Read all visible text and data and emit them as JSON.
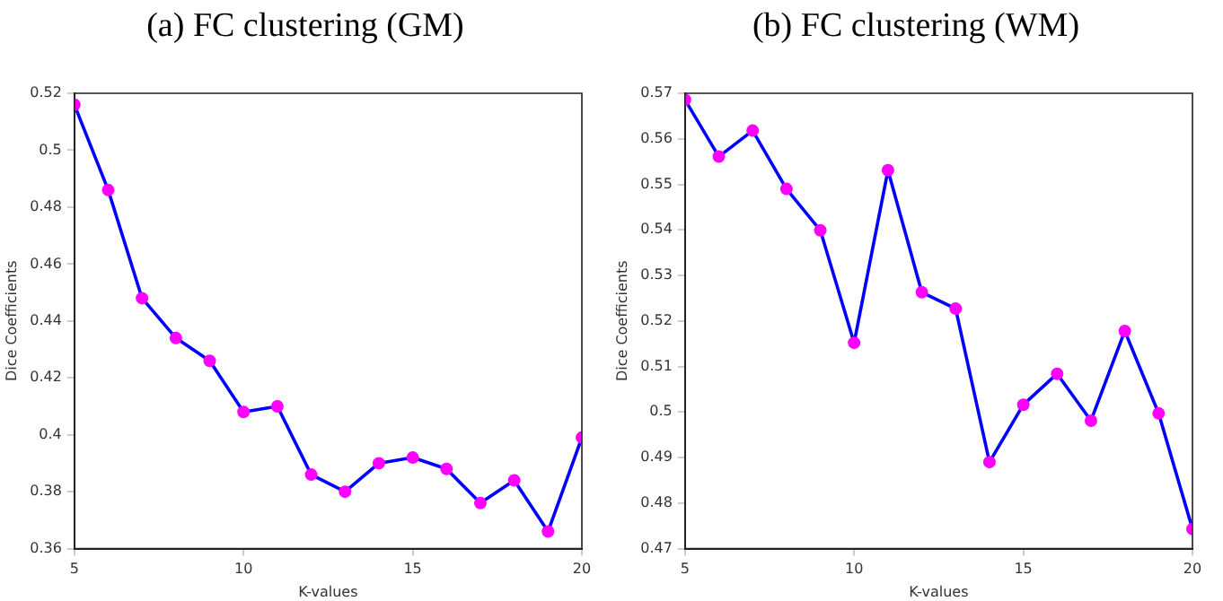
{
  "chart_data": [
    {
      "type": "line",
      "title": "(a) FC clustering (GM)",
      "xlabel": "K-values",
      "ylabel": "Dice Coefficients",
      "x": [
        5,
        6,
        7,
        8,
        9,
        10,
        11,
        12,
        13,
        14,
        15,
        16,
        17,
        18,
        19,
        20
      ],
      "series": [
        {
          "color": "#0000ff",
          "values": [
            0.516,
            0.486,
            0.448,
            0.434,
            0.426,
            0.408,
            0.41,
            0.386,
            0.38,
            0.39,
            0.392,
            0.388,
            0.376,
            0.384,
            0.366,
            0.399
          ]
        }
      ],
      "xlim": [
        5,
        20
      ],
      "xticks": [
        5,
        10,
        15,
        20
      ],
      "ylim": [
        0.36,
        0.52
      ],
      "yticks": [
        0.36,
        0.38,
        0.4,
        0.42,
        0.44,
        0.46,
        0.48,
        0.5,
        0.52
      ],
      "grid": false,
      "marker": "circle"
    },
    {
      "type": "line",
      "title": "(b) FC clustering (WM)",
      "xlabel": "K-values",
      "ylabel": "Dice Coefficients",
      "x": [
        5,
        6,
        7,
        8,
        9,
        10,
        11,
        12,
        13,
        14,
        15,
        16,
        17,
        18,
        19,
        20
      ],
      "series": [
        {
          "color": "#0000ff",
          "values": [
            0.5686,
            0.5561,
            0.5618,
            0.549,
            0.5399,
            0.5152,
            0.5531,
            0.5263,
            0.5227,
            0.489,
            0.5016,
            0.5084,
            0.4981,
            0.5178,
            0.4997,
            0.4743
          ]
        }
      ],
      "xlim": [
        5,
        20
      ],
      "xticks": [
        5,
        10,
        15,
        20
      ],
      "ylim": [
        0.47,
        0.57
      ],
      "yticks": [
        0.47,
        0.48,
        0.49,
        0.5,
        0.51,
        0.52,
        0.53,
        0.54,
        0.55,
        0.56,
        0.57
      ],
      "grid": false,
      "marker": "circle"
    }
  ]
}
